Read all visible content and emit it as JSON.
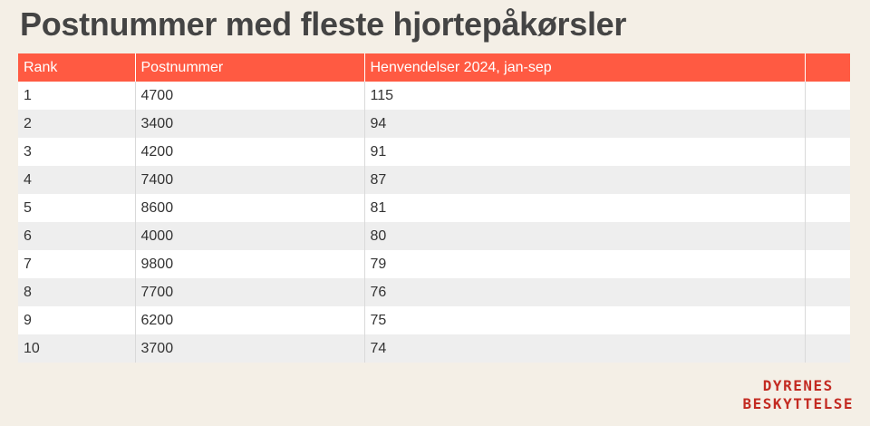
{
  "title": "Postnummer med fleste hjortepåkørsler",
  "colors": {
    "background": "#f4efe6",
    "header": "#ff5a42",
    "brand": "#c32b22"
  },
  "chart_data": {
    "type": "table",
    "title": "Postnummer med fleste hjortepåkørsler",
    "columns": [
      "Rank",
      "Postnummer",
      "Henvendelser 2024, jan-sep",
      ""
    ],
    "rows": [
      [
        "1",
        "4700",
        "115",
        ""
      ],
      [
        "2",
        "3400",
        "94",
        ""
      ],
      [
        "3",
        "4200",
        "91",
        ""
      ],
      [
        "4",
        "7400",
        "87",
        ""
      ],
      [
        "5",
        "8600",
        "81",
        ""
      ],
      [
        "6",
        "4000",
        "80",
        ""
      ],
      [
        "7",
        "9800",
        "79",
        ""
      ],
      [
        "8",
        "7700",
        "76",
        ""
      ],
      [
        "9",
        "6200",
        "75",
        ""
      ],
      [
        "10",
        "3700",
        "74",
        ""
      ]
    ]
  },
  "brand": {
    "line1": "DYRENES",
    "line2": "BESKYTTELSE"
  }
}
